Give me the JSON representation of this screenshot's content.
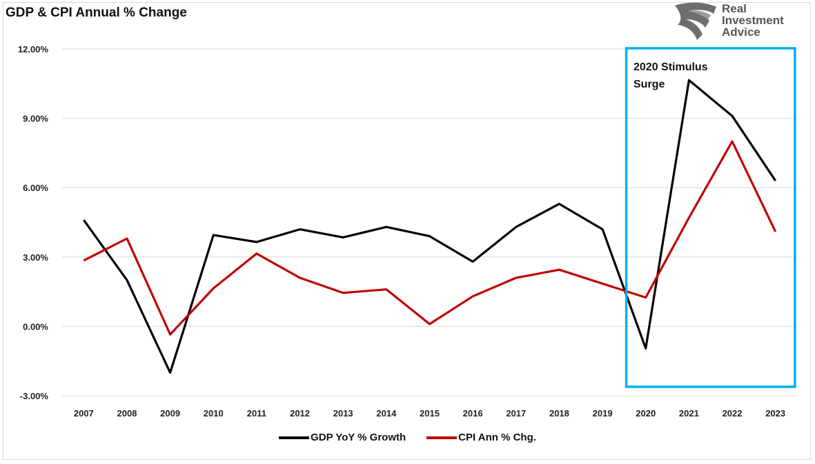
{
  "chart_data": {
    "type": "line",
    "title": "GDP & CPI Annual % Change",
    "categories": [
      "2007",
      "2008",
      "2009",
      "2010",
      "2011",
      "2012",
      "2013",
      "2014",
      "2015",
      "2016",
      "2017",
      "2018",
      "2019",
      "2020",
      "2021",
      "2022",
      "2023"
    ],
    "series": [
      {
        "name": "GDP YoY % Growth",
        "color": "#000000",
        "values": [
          4.6,
          2.0,
          -2.0,
          3.95,
          3.65,
          4.2,
          3.85,
          4.3,
          3.9,
          2.8,
          4.3,
          5.3,
          4.2,
          -0.95,
          10.65,
          9.1,
          6.3
        ]
      },
      {
        "name": "CPI Ann % Chg.",
        "color": "#c00000",
        "values": [
          2.85,
          3.8,
          -0.35,
          1.65,
          3.15,
          2.1,
          1.45,
          1.6,
          0.1,
          1.3,
          2.1,
          2.45,
          1.85,
          1.25,
          4.7,
          8.0,
          4.1
        ]
      }
    ],
    "ylim": [
      -3,
      12
    ],
    "yticks": [
      -3,
      0,
      3,
      6,
      9,
      12
    ],
    "ytick_labels": [
      "-3.00%",
      "0.00%",
      "3.00%",
      "6.00%",
      "9.00%",
      "12.00%"
    ],
    "grid": true,
    "legend": "bottom",
    "annotation": {
      "line1": "2020 Stimulus",
      "line2": "Surge",
      "box_color": "#00b0f0"
    }
  },
  "logo": {
    "line1": "Real",
    "line2": "Investment",
    "line3": "Advice"
  }
}
